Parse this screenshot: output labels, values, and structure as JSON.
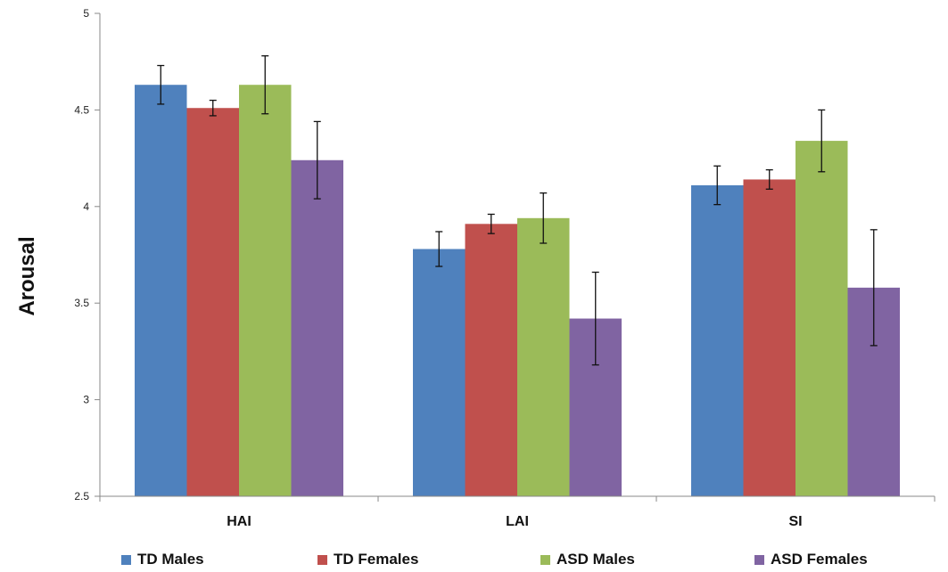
{
  "chart_data": {
    "type": "bar",
    "ylabel": "Arousal",
    "xlabel": "",
    "ylim": [
      2.5,
      5
    ],
    "yticks": [
      "2.5",
      "3",
      "3.5",
      "4",
      "4.5",
      "5"
    ],
    "categories": [
      "HAI",
      "LAI",
      "SI"
    ],
    "legend_position": "bottom",
    "series": [
      {
        "name": "TD Males",
        "color": "#4F81BD",
        "values": [
          4.63,
          3.78,
          4.11
        ],
        "errors": [
          0.1,
          0.09,
          0.1
        ]
      },
      {
        "name": "TD Females",
        "color": "#C0504D",
        "values": [
          4.51,
          3.91,
          4.14
        ],
        "errors": [
          0.04,
          0.05,
          0.05
        ]
      },
      {
        "name": "ASD Males",
        "color": "#9BBB59",
        "values": [
          4.63,
          3.94,
          4.34
        ],
        "errors": [
          0.15,
          0.13,
          0.16
        ]
      },
      {
        "name": "ASD Females",
        "color": "#8064A2",
        "values": [
          4.24,
          3.42,
          3.58
        ],
        "errors": [
          0.2,
          0.24,
          0.3
        ]
      }
    ]
  }
}
